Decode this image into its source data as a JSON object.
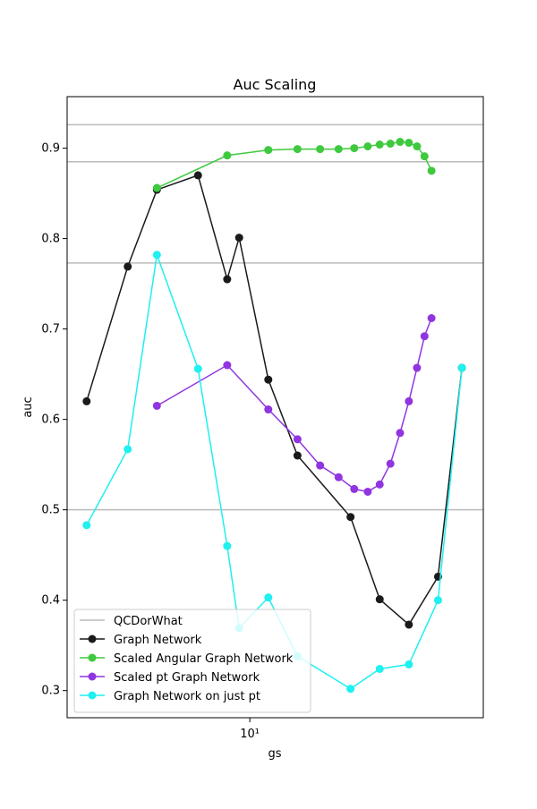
{
  "chart_data": {
    "type": "line",
    "title": "Auc Scaling",
    "x_label": "gs",
    "y_label": "auc",
    "x_scale": "log",
    "xlim": [
      1.65,
      100
    ],
    "ylim": [
      0.27,
      0.957
    ],
    "xticks": [
      {
        "value": 10,
        "label": "10¹"
      }
    ],
    "yticks": [
      0.3,
      0.4,
      0.5,
      0.6,
      0.7,
      0.8,
      0.9
    ],
    "legend": "lower left",
    "series": [
      {
        "name": "QCDorWhat",
        "color": "#bbbbbb",
        "values": [
          0.926,
          0.885,
          0.773,
          0.5
        ]
      },
      {
        "name": "Graph Network",
        "color": "#1a1a1a",
        "x": [
          2,
          3,
          4,
          6,
          8,
          9,
          12,
          16,
          27,
          36,
          48,
          64,
          81
        ],
        "values": [
          0.62,
          0.769,
          0.854,
          0.87,
          0.755,
          0.801,
          0.644,
          0.56,
          0.492,
          0.401,
          0.373,
          0.426,
          0.657
        ]
      },
      {
        "name": "Scaled Angular Graph Network",
        "color": "#3ec93e",
        "x": [
          4,
          8,
          12,
          16,
          20,
          24,
          28,
          32,
          36,
          40,
          44,
          48,
          52,
          56,
          60
        ],
        "values": [
          0.856,
          0.892,
          0.898,
          0.899,
          0.899,
          0.899,
          0.9,
          0.902,
          0.904,
          0.905,
          0.907,
          0.906,
          0.902,
          0.891,
          0.875
        ]
      },
      {
        "name": "Scaled pt Graph Network",
        "color": "#9035e0",
        "x": [
          4,
          8,
          12,
          16,
          20,
          24,
          28,
          32,
          36,
          40,
          44,
          48,
          52,
          56,
          60
        ],
        "values": [
          0.615,
          0.66,
          0.611,
          0.578,
          0.549,
          0.536,
          0.523,
          0.52,
          0.528,
          0.551,
          0.585,
          0.62,
          0.657,
          0.692,
          0.712
        ]
      },
      {
        "name": "Graph Network on just pt",
        "color": "#1ff0f0",
        "x": [
          2,
          3,
          4,
          6,
          8,
          9,
          12,
          16,
          27,
          36,
          48,
          64,
          81
        ],
        "values": [
          0.483,
          0.567,
          0.782,
          0.656,
          0.46,
          0.369,
          0.403,
          0.338,
          0.302,
          0.324,
          0.329,
          0.4,
          0.657
        ]
      }
    ]
  }
}
